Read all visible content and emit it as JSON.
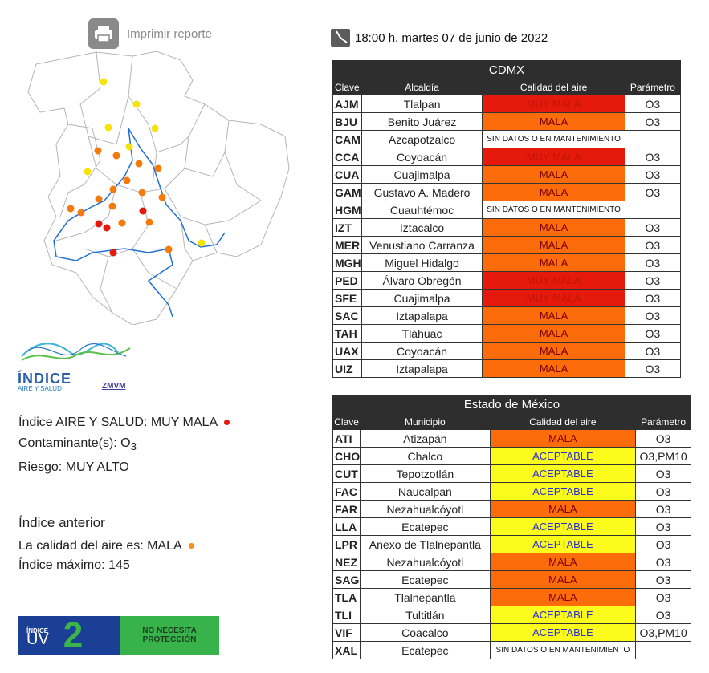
{
  "print": {
    "label": "Imprimir reporte"
  },
  "timestamp": "18:00 h, martes 07 de junio de 2022",
  "map": {
    "stations": [
      {
        "color": "#f5e30a"
      },
      {
        "color": "#f5e30a"
      },
      {
        "color": "#f5e30a"
      },
      {
        "color": "#f5e30a"
      },
      {
        "color": "#f57a0b"
      },
      {
        "color": "#f57a0b"
      },
      {
        "color": "#f5e30a"
      },
      {
        "color": "#f57a0b"
      },
      {
        "color": "#f57a0b"
      },
      {
        "color": "#f5e30a"
      },
      {
        "color": "#f57a0b"
      },
      {
        "color": "#f57a0b"
      },
      {
        "color": "#f57a0b"
      },
      {
        "color": "#f57a0b"
      },
      {
        "color": "#f57a0b"
      },
      {
        "color": "#f57a0b"
      },
      {
        "color": "#f57a0b"
      },
      {
        "color": "#f57a0b"
      },
      {
        "color": "#e51a0c"
      },
      {
        "color": "#e51a0c"
      },
      {
        "color": "#f57a0b"
      },
      {
        "color": "#e51a0c"
      },
      {
        "color": "#f57a0b"
      },
      {
        "color": "#f5e30a"
      },
      {
        "color": "#f57a0b"
      },
      {
        "color": "#e51a0c"
      }
    ]
  },
  "logo": {
    "text_main": "ÍNDICE",
    "text_sub": "AIRE Y SALUD",
    "text_org": "ZMVM"
  },
  "info": {
    "index_label": "Índice AIRE Y SALUD: ",
    "index_value": "MUY MALA",
    "index_color": "#e51a0c",
    "pollutant_label": "Contaminante(s): O",
    "pollutant_sub": "3",
    "risk": "Riesgo: MUY ALTO",
    "prev_title": "Índice anterior",
    "prev_label": "La calidad del aire es: ",
    "prev_value": "MALA",
    "prev_color": "#fd8c1b",
    "max_index": "Índice máximo: 145"
  },
  "uv": {
    "label_top": "ÍNDICE",
    "label_bottom": "UV",
    "value": "2",
    "message_line1": "NO NECESITA",
    "message_line2": "PROTECCIÓN"
  },
  "cdmx": {
    "title": "CDMX",
    "headers": [
      "Clave",
      "Alcaldía",
      "Calidad del aire",
      "Parámetro"
    ],
    "rows": [
      {
        "clave": "AJM",
        "name": "Tlalpan",
        "quality": "MUY MALA",
        "cls": "MUY",
        "param": "O3"
      },
      {
        "clave": "BJU",
        "name": "Benito Juárez",
        "quality": "MALA",
        "cls": "MALA",
        "param": "O3"
      },
      {
        "clave": "CAM",
        "name": "Azcapotzalco",
        "quality": "SIN DATOS O EN MANTENIMIENTO",
        "cls": "SIN",
        "param": ""
      },
      {
        "clave": "CCA",
        "name": "Coyoacán",
        "quality": "MUY MALA",
        "cls": "MUY",
        "param": "O3"
      },
      {
        "clave": "CUA",
        "name": "Cuajimalpa",
        "quality": "MALA",
        "cls": "MALA",
        "param": "O3"
      },
      {
        "clave": "GAM",
        "name": "Gustavo A. Madero",
        "quality": "MALA",
        "cls": "MALA",
        "param": "O3"
      },
      {
        "clave": "HGM",
        "name": "Cuauhtémoc",
        "quality": "SIN DATOS O EN MANTENIMIENTO",
        "cls": "SIN",
        "param": ""
      },
      {
        "clave": "IZT",
        "name": "Iztacalco",
        "quality": "MALA",
        "cls": "MALA",
        "param": "O3"
      },
      {
        "clave": "MER",
        "name": "Venustiano Carranza",
        "quality": "MALA",
        "cls": "MALA",
        "param": "O3"
      },
      {
        "clave": "MGH",
        "name": "Miguel Hidalgo",
        "quality": "MALA",
        "cls": "MALA",
        "param": "O3"
      },
      {
        "clave": "PED",
        "name": "Álvaro Obregón",
        "quality": "MUY MALA",
        "cls": "MUY",
        "param": "O3"
      },
      {
        "clave": "SFE",
        "name": "Cuajimalpa",
        "quality": "MUY MALA",
        "cls": "MUY",
        "param": "O3"
      },
      {
        "clave": "SAC",
        "name": "Iztapalapa",
        "quality": "MALA",
        "cls": "MALA",
        "param": "O3"
      },
      {
        "clave": "TAH",
        "name": "Tláhuac",
        "quality": "MALA",
        "cls": "MALA",
        "param": "O3"
      },
      {
        "clave": "UAX",
        "name": "Coyoacán",
        "quality": "MALA",
        "cls": "MALA",
        "param": "O3"
      },
      {
        "clave": "UIZ",
        "name": "Iztapalapa",
        "quality": "MALA",
        "cls": "MALA",
        "param": "O3"
      }
    ]
  },
  "edomex": {
    "title": "Estado de México",
    "headers": [
      "Clave",
      "Municipio",
      "Calidad del aire",
      "Parámetro"
    ],
    "rows": [
      {
        "clave": "ATI",
        "name": "Atizapán",
        "quality": "MALA",
        "cls": "MALA",
        "param": "O3"
      },
      {
        "clave": "CHO",
        "name": "Chalco",
        "quality": "ACEPTABLE",
        "cls": "ACEPT",
        "param": "O3,PM10"
      },
      {
        "clave": "CUT",
        "name": "Tepotzotlán",
        "quality": "ACEPTABLE",
        "cls": "ACEPT",
        "param": "O3"
      },
      {
        "clave": "FAC",
        "name": "Naucalpan",
        "quality": "ACEPTABLE",
        "cls": "ACEPT",
        "param": "O3"
      },
      {
        "clave": "FAR",
        "name": "Nezahualcóyotl",
        "quality": "MALA",
        "cls": "MALA",
        "param": "O3"
      },
      {
        "clave": "LLA",
        "name": "Ecatepec",
        "quality": "ACEPTABLE",
        "cls": "ACEPT",
        "param": "O3"
      },
      {
        "clave": "LPR",
        "name": "Anexo de Tlalnepantla",
        "quality": "ACEPTABLE",
        "cls": "ACEPT",
        "param": "O3"
      },
      {
        "clave": "NEZ",
        "name": "Nezahualcóyotl",
        "quality": "MALA",
        "cls": "MALA",
        "param": "O3"
      },
      {
        "clave": "SAG",
        "name": "Ecatepec",
        "quality": "MALA",
        "cls": "MALA",
        "param": "O3"
      },
      {
        "clave": "TLA",
        "name": "Tlalnepantla",
        "quality": "MALA",
        "cls": "MALA",
        "param": "O3"
      },
      {
        "clave": "TLI",
        "name": "Tultitlán",
        "quality": "ACEPTABLE",
        "cls": "ACEPT",
        "param": "O3"
      },
      {
        "clave": "VIF",
        "name": "Coacalco",
        "quality": "ACEPTABLE",
        "cls": "ACEPT",
        "param": "O3,PM10"
      },
      {
        "clave": "XAL",
        "name": "Ecatepec",
        "quality": "SIN DATOS O EN MANTENIMIENTO",
        "cls": "SIN",
        "param": ""
      }
    ]
  }
}
